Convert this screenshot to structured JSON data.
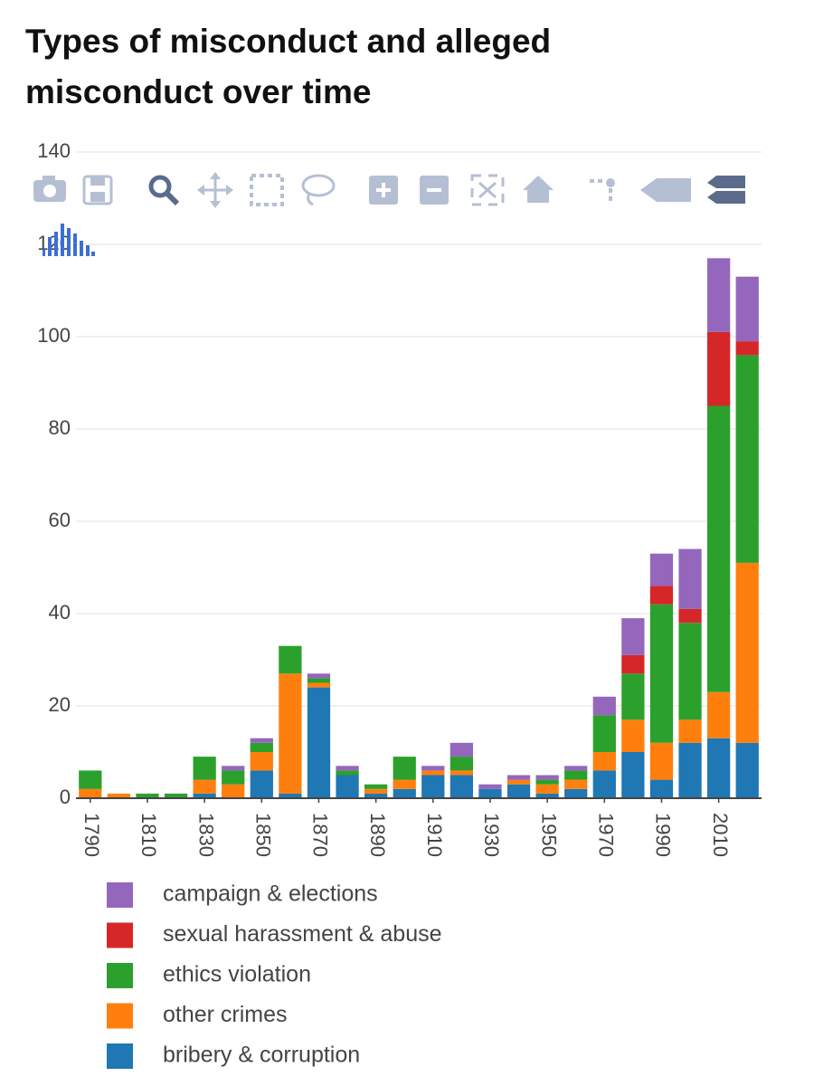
{
  "chart_data": {
    "type": "bar",
    "stacked": true,
    "title": "Types of misconduct and alleged misconduct over time",
    "x": [
      1790,
      1800,
      1810,
      1820,
      1830,
      1840,
      1850,
      1860,
      1870,
      1880,
      1890,
      1900,
      1910,
      1920,
      1930,
      1940,
      1950,
      1960,
      1970,
      1980,
      1990,
      2000,
      2010,
      2020
    ],
    "series": [
      {
        "name": "bribery & corruption",
        "color": "#1f77b4",
        "values": [
          0,
          0,
          0,
          0,
          1,
          0,
          6,
          1,
          24,
          5,
          1,
          2,
          5,
          5,
          2,
          3,
          1,
          2,
          6,
          10,
          4,
          12,
          13,
          12
        ]
      },
      {
        "name": "other crimes",
        "color": "#ff7f0e",
        "values": [
          2,
          1,
          0,
          0,
          3,
          3,
          4,
          26,
          1,
          0,
          1,
          2,
          1,
          1,
          0,
          1,
          2,
          2,
          4,
          7,
          8,
          5,
          10,
          39
        ]
      },
      {
        "name": "ethics violation",
        "color": "#2ca02c",
        "values": [
          4,
          0,
          1,
          1,
          5,
          3,
          2,
          6,
          1,
          1,
          1,
          5,
          0,
          3,
          0,
          0,
          1,
          2,
          8,
          10,
          30,
          21,
          62,
          45
        ]
      },
      {
        "name": "sexual harassment & abuse",
        "color": "#d62728",
        "values": [
          0,
          0,
          0,
          0,
          0,
          0,
          0,
          0,
          0,
          0,
          0,
          0,
          0,
          0,
          0,
          0,
          0,
          0,
          0,
          4,
          4,
          3,
          16,
          3
        ]
      },
      {
        "name": "campaign & elections",
        "color": "#9467bd",
        "values": [
          0,
          0,
          0,
          0,
          0,
          1,
          1,
          0,
          1,
          1,
          0,
          0,
          1,
          3,
          1,
          1,
          1,
          1,
          4,
          8,
          7,
          13,
          16,
          14
        ]
      }
    ],
    "xlim": [
      1785,
      2025
    ],
    "xticks": [
      1790,
      1810,
      1830,
      1850,
      1870,
      1890,
      1910,
      1930,
      1950,
      1970,
      1990,
      2010
    ],
    "ylim": [
      0,
      140
    ],
    "yticks": [
      0,
      20,
      40,
      60,
      80,
      100,
      120,
      140
    ],
    "grid": true,
    "legend": "bottom"
  }
}
